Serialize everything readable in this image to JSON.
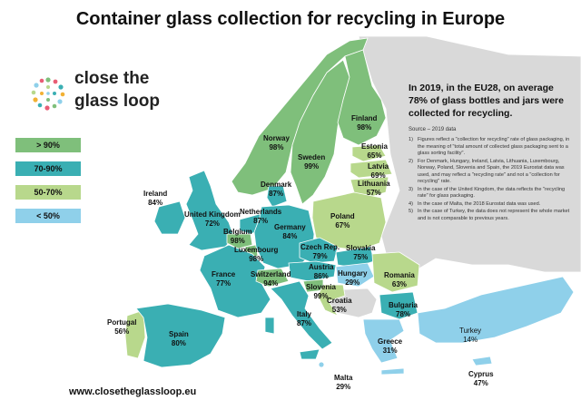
{
  "title": "Container glass collection for recycling in Europe",
  "logo": {
    "line1": "close the",
    "line2": "glass loop"
  },
  "legend": [
    {
      "label": "> 90%",
      "color": "#7fbf7b"
    },
    {
      "label": "70-90%",
      "color": "#3aafb3"
    },
    {
      "label": "50-70%",
      "color": "#b8d88c"
    },
    {
      "label": "< 50%",
      "color": "#8fd0ea"
    }
  ],
  "headline": "In 2019, in the EU28, on average 78% of glass bottles and jars were collected for recycling.",
  "source": "Source – 2019 data",
  "notes": [
    {
      "num": "1)",
      "text": "Figures reflect a \"collection for recycling\" rate of glass packaging, in the meaning of \"total amount of collected glass packaging sent to a glass sorting facility\"."
    },
    {
      "num": "2)",
      "text": "For Denmark, Hungary, Ireland, Latvia, Lithuania, Luxembourg, Norway, Poland, Slovenia and Spain, the 2019 Eurostat data was used, and may reflect a \"recycling rate\" and not a \"collection for recycling\" rate."
    },
    {
      "num": "3)",
      "text": "In the case of the United Kingdom, the data reflects the \"recycling rate\" for glass packaging."
    },
    {
      "num": "4)",
      "text": "In the case of Malta, the 2018 Eurostat data was used."
    },
    {
      "num": "5)",
      "text": "In the case of Turkey, the data does not represent the whole market and is not comparable to previous years."
    }
  ],
  "website": "www.closetheglassloop.eu",
  "colors": {
    "non_member": "#d9d9d9",
    "border": "#ffffff"
  },
  "countries": [
    {
      "name": "Finland",
      "value": "98%",
      "category": "> 90%"
    },
    {
      "name": "Norway",
      "value": "98%",
      "category": "> 90%"
    },
    {
      "name": "Sweden",
      "value": "99%",
      "category": "> 90%"
    },
    {
      "name": "Estonia",
      "value": "65%",
      "category": "50-70%"
    },
    {
      "name": "Latvia",
      "value": "69%",
      "category": "50-70%"
    },
    {
      "name": "Lithuania",
      "value": "57%",
      "category": "50-70%"
    },
    {
      "name": "Denmark",
      "value": "87%",
      "category": "70-90%"
    },
    {
      "name": "Ireland",
      "value": "84%",
      "category": "70-90%"
    },
    {
      "name": "United Kingdom",
      "value": "72%",
      "category": "70-90%"
    },
    {
      "name": "Netherlands",
      "value": "87%",
      "category": "70-90%"
    },
    {
      "name": "Belgium",
      "value": "98%",
      "category": "> 90%"
    },
    {
      "name": "Luxembourg",
      "value": "98%",
      "category": "> 90%"
    },
    {
      "name": "Germany",
      "value": "84%",
      "category": "70-90%"
    },
    {
      "name": "Poland",
      "value": "67%",
      "category": "50-70%"
    },
    {
      "name": "Czech Rep.",
      "value": "79%",
      "category": "70-90%"
    },
    {
      "name": "Slovakia",
      "value": "75%",
      "category": "70-90%"
    },
    {
      "name": "France",
      "value": "77%",
      "category": "70-90%"
    },
    {
      "name": "Switzerland",
      "value": "94%",
      "category": "> 90%"
    },
    {
      "name": "Austria",
      "value": "86%",
      "category": "70-90%"
    },
    {
      "name": "Hungary",
      "value": "29%",
      "category": "< 50%"
    },
    {
      "name": "Romania",
      "value": "63%",
      "category": "50-70%"
    },
    {
      "name": "Slovenia",
      "value": "99%",
      "category": "> 90%"
    },
    {
      "name": "Croatia",
      "value": "53%",
      "category": "50-70%"
    },
    {
      "name": "Italy",
      "value": "87%",
      "category": "70-90%"
    },
    {
      "name": "Bulgaria",
      "value": "78%",
      "category": "70-90%"
    },
    {
      "name": "Portugal",
      "value": "56%",
      "category": "50-70%"
    },
    {
      "name": "Spain",
      "value": "80%",
      "category": "70-90%"
    },
    {
      "name": "Greece",
      "value": "31%",
      "category": "< 50%"
    },
    {
      "name": "Turkey",
      "value": "14%",
      "category": "< 50%"
    },
    {
      "name": "Malta",
      "value": "29%",
      "category": "< 50%"
    },
    {
      "name": "Cyprus",
      "value": "47%",
      "category": "< 50%"
    }
  ]
}
